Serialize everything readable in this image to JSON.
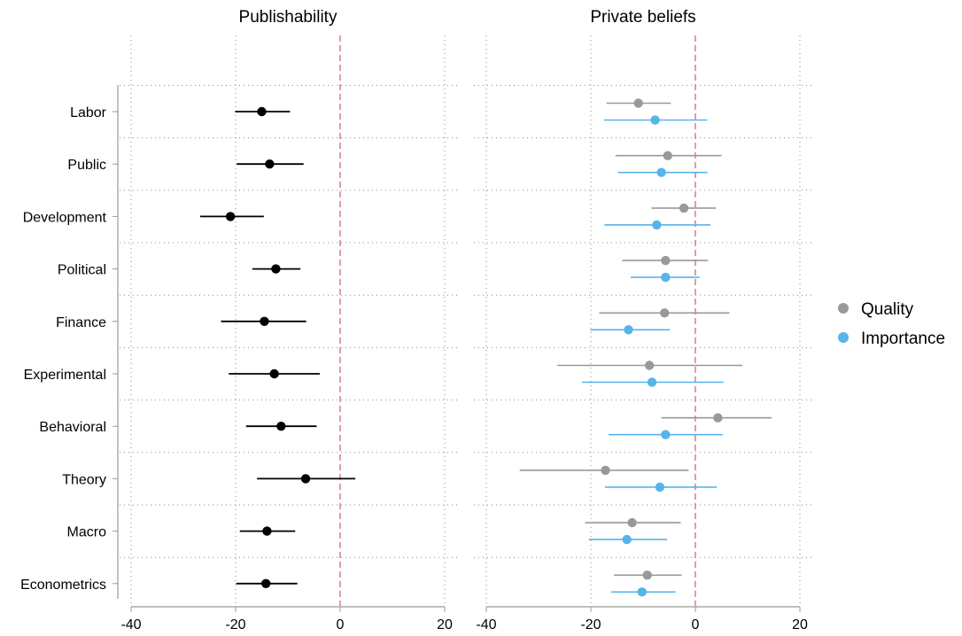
{
  "chart_data": [
    {
      "type": "scatter",
      "subtype": "coefficient-plot",
      "title": "Publishability",
      "categories": [
        "Labor",
        "Public",
        "Development",
        "Political",
        "Finance",
        "Experimental",
        "Behavioral",
        "Theory",
        "Macro",
        "Econometrics"
      ],
      "series": [
        {
          "color": "#000000",
          "estimates": [
            -15,
            -13.5,
            -21,
            -12.3,
            -14.5,
            -12.6,
            -11.3,
            -6.6,
            -14,
            -14.2
          ],
          "ci_low": [
            -20.1,
            -19.8,
            -26.8,
            -16.8,
            -22.8,
            -21.3,
            -18,
            -15.9,
            -19.2,
            -19.9
          ],
          "ci_high": [
            -9.6,
            -7,
            -14.6,
            -7.6,
            -6.5,
            -3.9,
            -4.5,
            2.9,
            -8.6,
            -8.2
          ]
        }
      ],
      "xlim": [
        -40,
        20
      ],
      "xticks": [
        "-40",
        "-20",
        "0",
        "20"
      ],
      "reference_line": 0,
      "grid": true
    },
    {
      "type": "scatter",
      "subtype": "coefficient-plot",
      "title": "Private beliefs",
      "categories": [
        "Labor",
        "Public",
        "Development",
        "Political",
        "Finance",
        "Experimental",
        "Behavioral",
        "Theory",
        "Macro",
        "Econometrics"
      ],
      "series": [
        {
          "name": "Quality",
          "color": "#999999",
          "estimates": [
            -10.9,
            -5.3,
            -2.2,
            -5.7,
            -5.9,
            -8.8,
            4.3,
            -17.2,
            -12.1,
            -9.2
          ],
          "ci_low": [
            -17,
            -15.3,
            -8.4,
            -14,
            -18.4,
            -26.4,
            -6.5,
            -33.6,
            -21.1,
            -15.6
          ],
          "ci_high": [
            -4.7,
            5,
            3.9,
            2.4,
            6.5,
            9,
            14.6,
            -1.3,
            -2.8,
            -2.6
          ]
        },
        {
          "name": "Importance",
          "color": "#56b4e9",
          "estimates": [
            -7.7,
            -6.5,
            -7.4,
            -5.7,
            -12.8,
            -8.3,
            -5.7,
            -6.8,
            -13.1,
            -10.2
          ],
          "ci_low": [
            -17.5,
            -14.8,
            -17.4,
            -12.4,
            -20.1,
            -21.7,
            -16.6,
            -17.3,
            -20.4,
            -16.1
          ],
          "ci_high": [
            2.3,
            2.3,
            2.9,
            0.8,
            -4.9,
            5.4,
            5.2,
            4.1,
            -5.4,
            -3.8
          ]
        }
      ],
      "xlim": [
        -40,
        20
      ],
      "xticks": [
        "-40",
        "-20",
        "0",
        "20"
      ],
      "reference_line": 0,
      "grid": true,
      "legend": "right"
    }
  ]
}
